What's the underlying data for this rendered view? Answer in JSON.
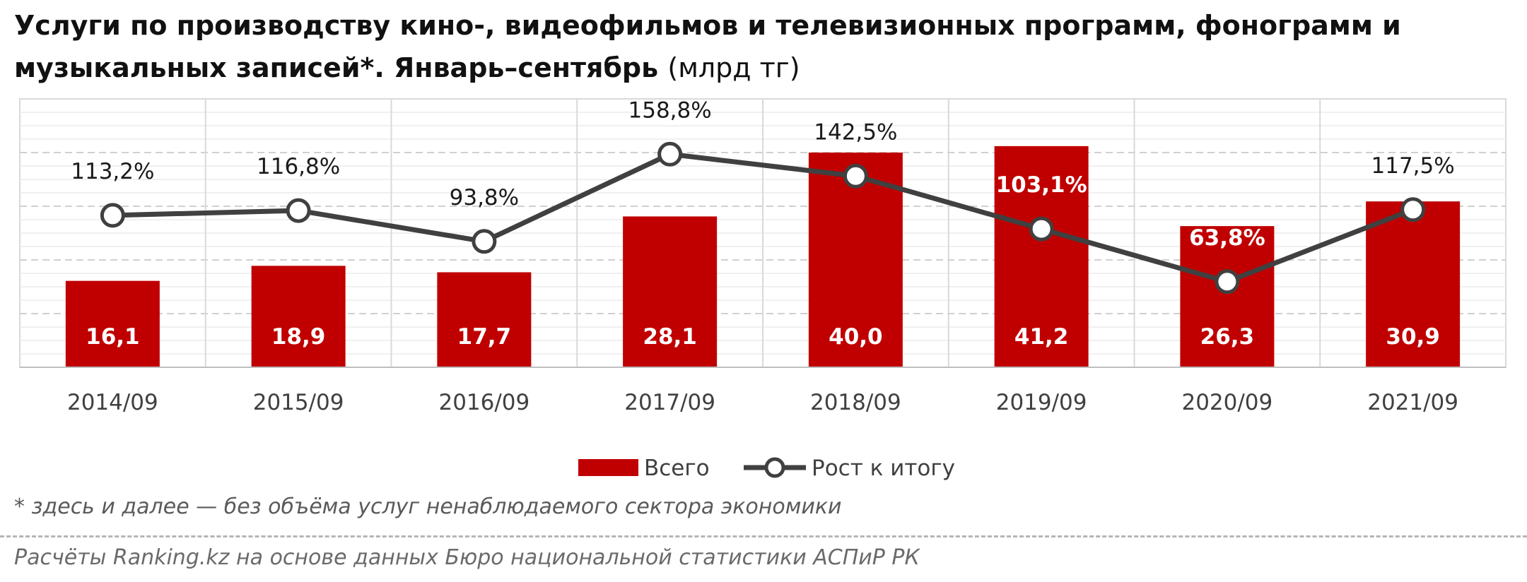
{
  "title": {
    "main": "Услуги по производству кино-, видеофильмов и телевизионных программ, фонограмм и музыкальных записей*. Январь–сентябрь",
    "unit": "(млрд тг)"
  },
  "footnote": "* здесь и далее — без объёма услуг ненаблюдаемого сектора экономики",
  "source": "Расчёты Ranking.kz на основе данных Бюро национальной статистики АСПиР РК",
  "colors": {
    "bar": "#c00000",
    "line": "#404040",
    "marker_fill": "#ffffff",
    "grid": "#d9d9d9"
  },
  "chart_data": {
    "type": "bar",
    "categories": [
      "2014/09",
      "2015/09",
      "2016/09",
      "2017/09",
      "2018/09",
      "2019/09",
      "2020/09",
      "2021/09"
    ],
    "series": [
      {
        "name": "Всего",
        "type": "bar",
        "values": [
          16.1,
          18.9,
          17.7,
          28.1,
          40.0,
          41.2,
          26.3,
          30.9
        ],
        "labels": [
          "16,1",
          "18,9",
          "17,7",
          "28,1",
          "40,0",
          "41,2",
          "26,3",
          "30,9"
        ]
      },
      {
        "name": "Рост к итогу",
        "type": "line",
        "values": [
          113.2,
          116.8,
          93.8,
          158.8,
          142.5,
          103.1,
          63.8,
          117.5
        ],
        "labels": [
          "113,2%",
          "116,8%",
          "93,8%",
          "158,8%",
          "142,5%",
          "103,1%",
          "63,8%",
          "117,5%"
        ]
      }
    ],
    "ylim": [
      0,
      50
    ],
    "y2lim": [
      0,
      200
    ],
    "grid": true,
    "legend": "bottom"
  }
}
